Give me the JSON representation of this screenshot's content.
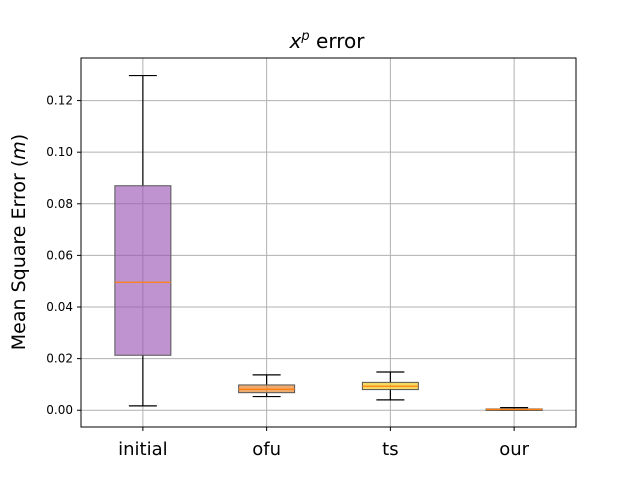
{
  "chart_data": {
    "type": "box",
    "title_base": "x",
    "title_sup": "p",
    "title_rest": " error",
    "ylabel_main": "Mean Square Error (",
    "ylabel_unit": "m",
    "ylabel_close": ")",
    "ylim": [
      -0.0065,
      0.1365
    ],
    "yticks": [
      0.0,
      0.02,
      0.04,
      0.06,
      0.08,
      0.1,
      0.12
    ],
    "ytick_labels": [
      "0.00",
      "0.02",
      "0.04",
      "0.06",
      "0.08",
      "0.10",
      "0.12"
    ],
    "grid": true,
    "median_color": "#ff7f0e",
    "categories": [
      "initial",
      "ofu",
      "ts",
      "our"
    ],
    "boxes": [
      {
        "name": "initial",
        "whislo": 0.0017,
        "q1": 0.0213,
        "med": 0.0496,
        "q3": 0.087,
        "whishi": 0.1297,
        "color": "#9b59b6"
      },
      {
        "name": "ofu",
        "whislo": 0.0053,
        "q1": 0.0068,
        "med": 0.0081,
        "q3": 0.0098,
        "whishi": 0.0137,
        "color": "#e67e22"
      },
      {
        "name": "ts",
        "whislo": 0.004,
        "q1": 0.008,
        "med": 0.0093,
        "q3": 0.0108,
        "whishi": 0.0148,
        "color": "#f1c40f"
      },
      {
        "name": "our",
        "whislo": 0.0,
        "q1": 0.0001,
        "med": 0.0003,
        "q3": 0.0005,
        "whishi": 0.001,
        "color": "#e74c3c"
      }
    ]
  }
}
